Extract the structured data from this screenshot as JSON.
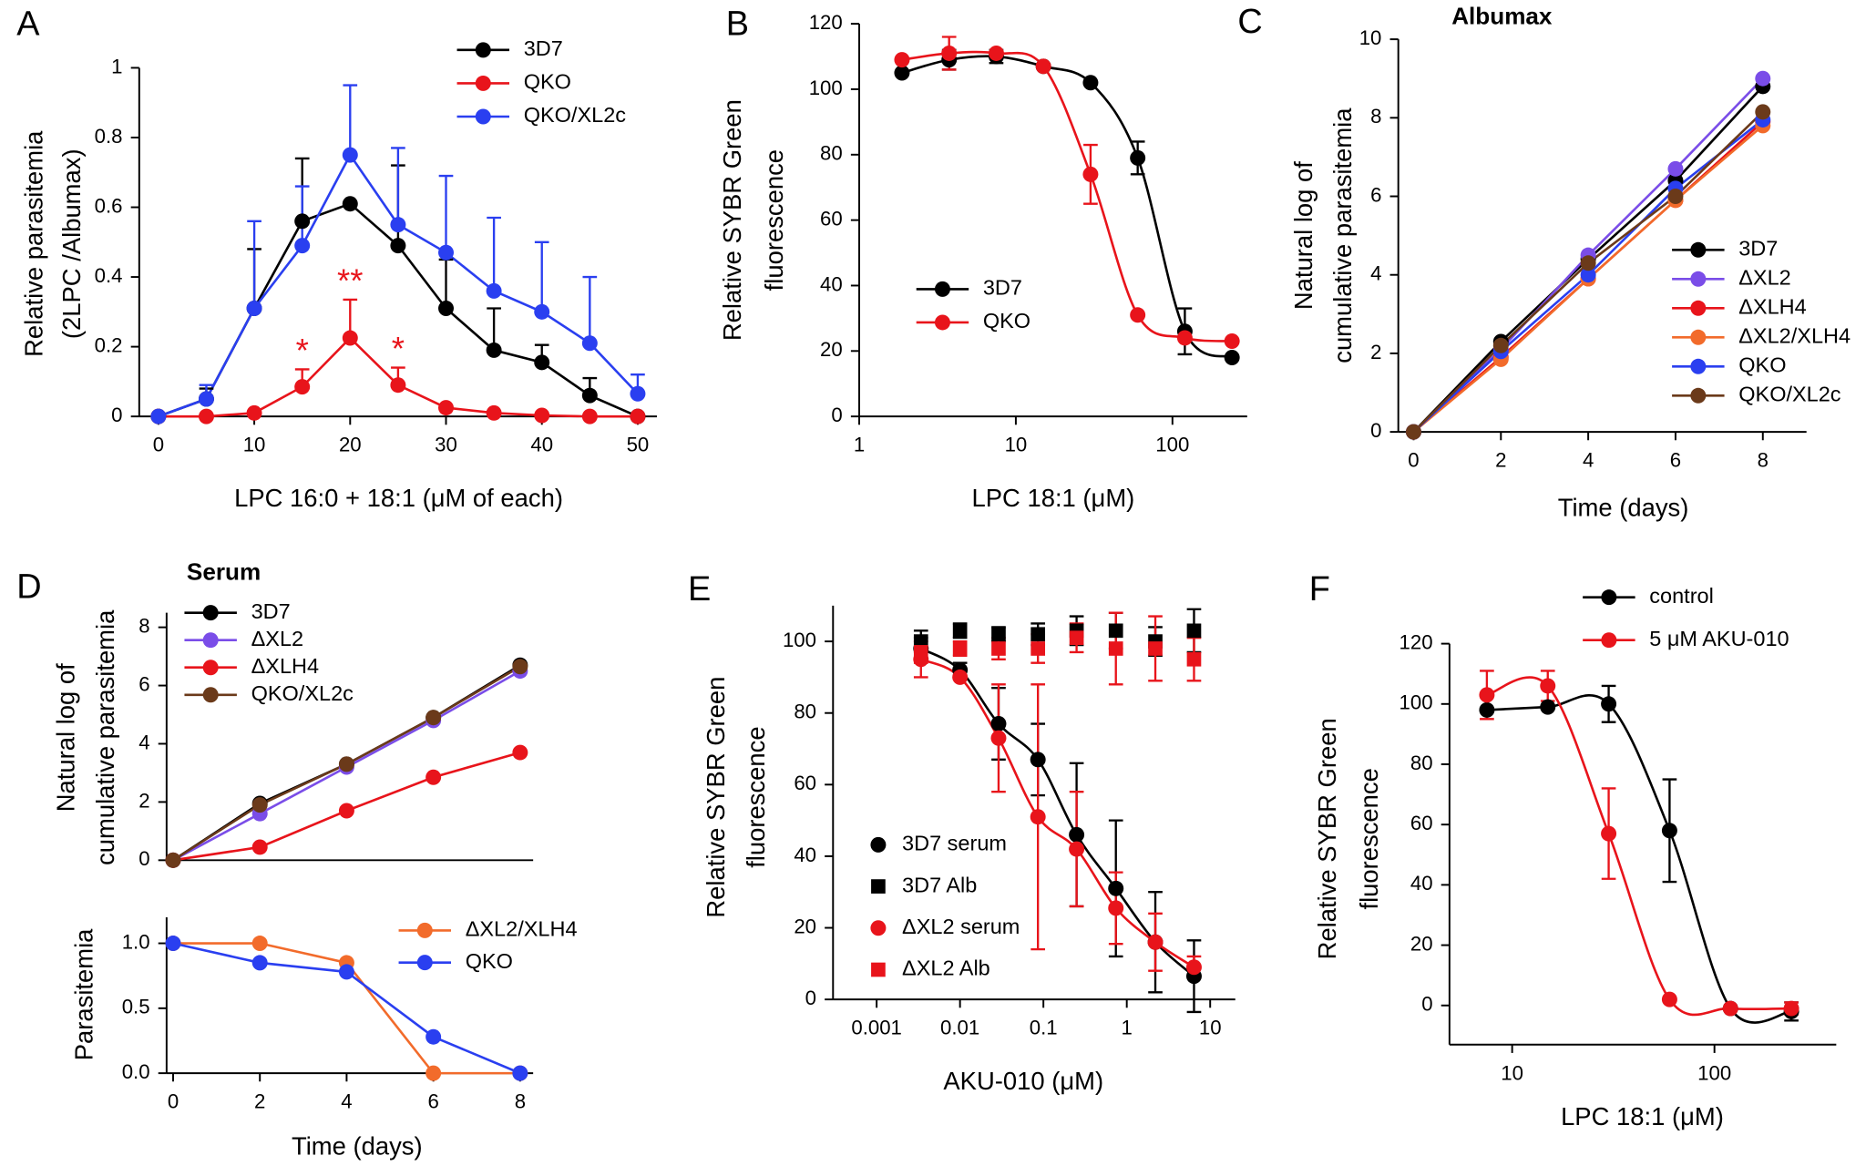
{
  "chart_data": [
    {
      "type": "line",
      "panel_label": "A",
      "xscale": "linear",
      "error_bars": "upper",
      "legend": "upper right",
      "legend_lines": true,
      "xlabel": "LPC 16:0 + 18:1 (μM of each)",
      "ylabel": [
        "Relative parasitemia",
        "(2LPC /Albumax)"
      ],
      "x": [
        0,
        5,
        10,
        15,
        20,
        25,
        30,
        35,
        40,
        45,
        50
      ],
      "xlim": [
        -2,
        52
      ],
      "xticks": [
        0,
        10,
        20,
        30,
        40,
        50
      ],
      "ylim": [
        0,
        1
      ],
      "yticks": [
        0,
        0.2,
        0.4,
        0.6,
        0.8,
        1
      ],
      "annotations": [
        "*",
        "**",
        "*"
      ],
      "series": [
        {
          "name": "3D7",
          "color": "#000000",
          "marker": "circle",
          "connect": "straight",
          "values": [
            0,
            0.05,
            0.31,
            0.56,
            0.61,
            0.49,
            0.31,
            0.19,
            0.155,
            0.06,
            0
          ],
          "errors": [
            0,
            0.03,
            0.17,
            0.18,
            0,
            0.23,
            0.14,
            0.12,
            0.05,
            0.05,
            0
          ]
        },
        {
          "name": "QKO",
          "color": "#e8141b",
          "marker": "circle",
          "connect": "straight",
          "values": [
            0,
            0,
            0.01,
            0.085,
            0.225,
            0.09,
            0.025,
            0.01,
            0.003,
            0,
            0
          ],
          "errors": [
            0,
            0,
            0,
            0.05,
            0.11,
            0.05,
            0,
            0,
            0,
            0,
            0
          ]
        },
        {
          "name": "QKO/XL2c",
          "color": "#2a3ff0",
          "marker": "circle",
          "connect": "straight",
          "values": [
            0,
            0.05,
            0.31,
            0.49,
            0.75,
            0.55,
            0.47,
            0.36,
            0.3,
            0.21,
            0.065
          ],
          "errors": [
            0,
            0.04,
            0.25,
            0.17,
            0.2,
            0.22,
            0.22,
            0.21,
            0.2,
            0.19,
            0.055
          ]
        }
      ]
    },
    {
      "type": "line",
      "panel_label": "B",
      "xscale": "log",
      "error_bars": "both",
      "legend": "lower left",
      "legend_lines": true,
      "xlabel": "LPC 18:1 (μM)",
      "ylabel": [
        "Relative SYBR Green",
        "fluorescence"
      ],
      "x": [
        1.875,
        3.75,
        7.5,
        15,
        30,
        60,
        120,
        240
      ],
      "xlim": [
        1,
        300
      ],
      "xticks": [
        1,
        10,
        100
      ],
      "ylim": [
        0,
        120
      ],
      "yticks": [
        0,
        20,
        40,
        60,
        80,
        100,
        120
      ],
      "series": [
        {
          "name": "3D7",
          "color": "#000000",
          "marker": "circle",
          "connect": "smooth",
          "values": [
            105,
            109,
            110,
            107,
            102,
            79,
            26,
            18
          ],
          "errors": [
            0,
            3,
            2,
            0,
            0,
            5,
            7,
            0
          ]
        },
        {
          "name": "QKO",
          "color": "#e8141b",
          "marker": "circle",
          "connect": "smooth",
          "values": [
            109,
            111,
            111,
            107,
            74,
            31,
            24,
            23
          ],
          "errors": [
            0,
            5,
            0,
            0,
            9,
            0,
            0,
            0
          ]
        }
      ]
    },
    {
      "type": "line",
      "panel_label": "C",
      "title": "Albumax",
      "xscale": "linear",
      "error_bars": "both",
      "legend": "lower right",
      "legend_lines": true,
      "xlabel": "Time (days)",
      "ylabel": [
        "Natural log of",
        "cumulative parasitemia"
      ],
      "x": [
        0,
        2,
        4,
        6,
        8
      ],
      "xlim": [
        -0.35,
        9
      ],
      "xticks": [
        0,
        2,
        4,
        6,
        8
      ],
      "ylim": [
        0,
        10
      ],
      "yticks": [
        0,
        2,
        4,
        6,
        8,
        10
      ],
      "series": [
        {
          "name": "3D7",
          "color": "#000000",
          "marker": "circle",
          "connect": "straight",
          "values": [
            0,
            2.3,
            4.4,
            6.4,
            8.8
          ]
        },
        {
          "name": "ΔXL2",
          "color": "#7a4de8",
          "marker": "circle",
          "connect": "straight",
          "values": [
            0,
            2.1,
            4.5,
            6.7,
            9.0
          ]
        },
        {
          "name": "ΔXLH4",
          "color": "#e8141b",
          "marker": "circle",
          "connect": "straight",
          "values": [
            0,
            1.9,
            3.9,
            5.9,
            7.9
          ]
        },
        {
          "name": "ΔXL2/XLH4",
          "color": "#f26b2b",
          "marker": "circle",
          "connect": "straight",
          "values": [
            0,
            1.85,
            3.9,
            5.9,
            7.8
          ]
        },
        {
          "name": "QKO",
          "color": "#2a3ff0",
          "marker": "circle",
          "connect": "straight",
          "values": [
            0,
            2.05,
            4.0,
            6.2,
            7.95
          ]
        },
        {
          "name": "QKO/XL2c",
          "color": "#6b3a1a",
          "marker": "circle",
          "connect": "straight",
          "values": [
            0,
            2.2,
            4.3,
            6.0,
            8.15
          ]
        }
      ]
    },
    {
      "type": "line",
      "panel_label": "D",
      "title": "Serum",
      "xscale": "linear",
      "error_bars": "both",
      "legend": "upper left",
      "legend_lines": true,
      "ylabel": [
        "Natural log of",
        "cumulative parasitemia"
      ],
      "x": [
        0,
        2,
        4,
        6,
        8
      ],
      "xlim": [
        -0.15,
        8.3
      ],
      "ylim": [
        0,
        8.5
      ],
      "yticks": [
        0,
        2,
        4,
        6,
        8
      ],
      "series": [
        {
          "name": "3D7",
          "color": "#000000",
          "marker": "circle",
          "connect": "straight",
          "values": [
            0,
            1.95,
            3.3,
            4.9,
            6.7
          ]
        },
        {
          "name": "ΔXL2",
          "color": "#7a4de8",
          "marker": "circle",
          "connect": "straight",
          "values": [
            0,
            1.6,
            3.2,
            4.8,
            6.5
          ]
        },
        {
          "name": "ΔXLH4",
          "color": "#e8141b",
          "marker": "circle",
          "connect": "straight",
          "values": [
            0,
            0.45,
            1.7,
            2.85,
            3.7
          ]
        },
        {
          "name": "QKO/XL2c",
          "color": "#6b3a1a",
          "marker": "circle",
          "connect": "straight",
          "values": [
            0,
            1.9,
            3.3,
            4.9,
            6.65
          ]
        }
      ]
    },
    {
      "type": "line",
      "xscale": "linear",
      "error_bars": "both",
      "legend": "upper right",
      "legend_lines": true,
      "xlabel": "Time (days)",
      "ylabel": [
        "Parasitemia"
      ],
      "x": [
        0,
        2,
        4,
        6,
        8
      ],
      "xlim": [
        -0.15,
        8.3
      ],
      "xticks": [
        0,
        2,
        4,
        6,
        8
      ],
      "ylim": [
        0,
        1.2
      ],
      "yticks": [
        {
          "value": 0,
          "label": "0.0"
        },
        {
          "value": 0.5,
          "label": "0.5"
        },
        {
          "value": 1,
          "label": "1.0"
        }
      ],
      "series": [
        {
          "name": "ΔXL2/XLH4",
          "color": "#f26b2b",
          "marker": "circle",
          "connect": "straight",
          "values": [
            1,
            1,
            0.85,
            0,
            0
          ]
        },
        {
          "name": "QKO",
          "color": "#2a3ff0",
          "marker": "circle",
          "connect": "straight",
          "values": [
            1,
            0.85,
            0.78,
            0.28,
            0
          ]
        }
      ]
    },
    {
      "type": "line",
      "panel_label": "E",
      "xscale": "log",
      "error_bars": "both",
      "legend": "lower left",
      "legend_lines": false,
      "xlabel": "AKU-010 (μM)",
      "ylabel": [
        "Relative SYBR Green",
        "fluorescence"
      ],
      "x": [
        0.0034,
        0.01,
        0.029,
        0.086,
        0.25,
        0.74,
        2.2,
        6.4
      ],
      "xlim": [
        0.0003,
        20
      ],
      "xticks": [
        0.001,
        0.01,
        0.1,
        1,
        10
      ],
      "ylim": [
        0,
        110
      ],
      "yticks": [
        0,
        20,
        40,
        60,
        80,
        100
      ],
      "series": [
        {
          "name": "3D7 serum",
          "color": "#000000",
          "marker": "circle",
          "connect": "smooth",
          "values": [
            98,
            92,
            77,
            67,
            46,
            31,
            16,
            6.5
          ],
          "errors": [
            3,
            2,
            10,
            10,
            20,
            19,
            14,
            10
          ]
        },
        {
          "name": "3D7 Alb",
          "color": "#000000",
          "marker": "square",
          "connect": "none",
          "values": [
            100,
            103,
            102,
            102,
            103,
            103,
            100,
            103
          ],
          "errors": [
            3,
            2,
            2,
            3,
            4,
            5,
            4,
            6
          ]
        },
        {
          "name": "ΔXL2 serum",
          "color": "#e8141b",
          "marker": "circle",
          "connect": "smooth",
          "values": [
            95,
            90,
            73,
            51,
            42,
            25.5,
            16,
            9
          ],
          "errors": [
            5,
            0,
            15,
            37,
            16,
            10,
            8,
            3
          ]
        },
        {
          "name": "ΔXL2 Alb",
          "color": "#e8141b",
          "marker": "square",
          "connect": "none",
          "values": [
            97,
            98,
            98,
            98,
            101,
            98,
            98,
            95
          ],
          "errors": [
            3,
            2,
            3,
            4,
            4,
            10,
            9,
            6
          ]
        }
      ]
    },
    {
      "type": "line",
      "panel_label": "F",
      "xscale": "log",
      "error_bars": "both",
      "legend": "upper left",
      "legend_lines": true,
      "xlabel": "LPC 18:1 (μM)",
      "ylabel": [
        "Relative SYBR Green",
        "fluorescence"
      ],
      "x": [
        7.5,
        15,
        30,
        60,
        120,
        240
      ],
      "xlim": [
        4.9,
        400
      ],
      "xticks": [
        10,
        100
      ],
      "ylim": [
        -13,
        120
      ],
      "yticks": [
        0,
        20,
        40,
        60,
        80,
        100,
        120
      ],
      "series": [
        {
          "name": "control",
          "color": "#000000",
          "marker": "circle",
          "connect": "smooth",
          "values": [
            98,
            99,
            100,
            58,
            -1,
            -2
          ],
          "errors": [
            0,
            0,
            6,
            17,
            0,
            3
          ]
        },
        {
          "name": "5 μM AKU-010",
          "color": "#e8141b",
          "marker": "circle",
          "connect": "smooth",
          "values": [
            103,
            106,
            57,
            2,
            -1,
            -1
          ],
          "errors": [
            8,
            5,
            15,
            0,
            0,
            2
          ]
        }
      ]
    }
  ]
}
